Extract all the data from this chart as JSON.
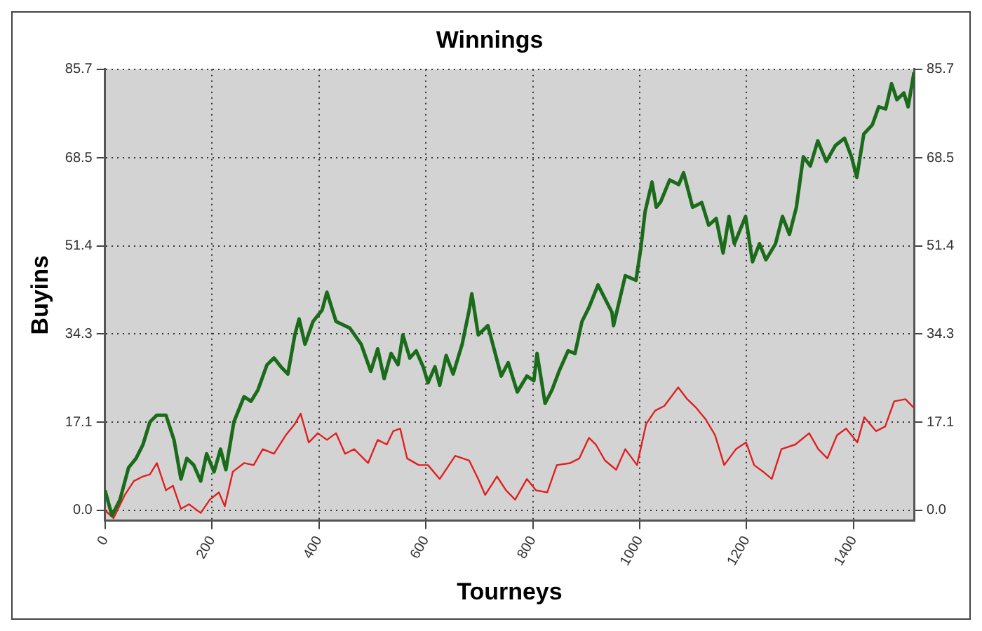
{
  "chart_data": {
    "type": "line",
    "title": "Winnings",
    "xlabel": "Tourneys",
    "ylabel": "Buyins",
    "xlim": [
      0,
      1513
    ],
    "xticks": [
      0,
      200,
      400,
      600,
      800,
      1000,
      1200,
      1400
    ],
    "ylim": [
      -2,
      85.7
    ],
    "yticks": [
      {
        "value": 0,
        "label": "0.0"
      },
      17.1,
      34.3,
      51.4,
      68.5,
      85.7
    ],
    "y2lim": [
      -2,
      85.7
    ],
    "y2ticks": [
      {
        "value": 0,
        "label": "0.0"
      },
      17.1,
      34.3,
      51.4,
      68.5,
      85.7
    ],
    "grid": true,
    "marker": "none",
    "line_style": "solid",
    "series": [
      {
        "color": "#1a6b1a",
        "x": [
          0,
          13,
          28,
          44,
          58,
          71,
          84,
          97,
          114,
          129,
          142,
          153,
          166,
          179,
          190,
          204,
          216,
          226,
          241,
          260,
          273,
          286,
          303,
          316,
          329,
          342,
          355,
          363,
          374,
          389,
          406,
          415,
          432,
          458,
          479,
          497,
          510,
          522,
          535,
          548,
          557,
          570,
          582,
          595,
          604,
          617,
          626,
          638,
          651,
          668,
          681,
          686,
          698,
          716,
          741,
          754,
          771,
          789,
          802,
          808,
          823,
          836,
          849,
          866,
          879,
          892,
          905,
          922,
          948,
          951,
          973,
          993,
          1002,
          1010,
          1023,
          1031,
          1039,
          1056,
          1073,
          1082,
          1099,
          1116,
          1129,
          1143,
          1156,
          1167,
          1177,
          1198,
          1211,
          1224,
          1236,
          1254,
          1267,
          1280,
          1293,
          1306,
          1319,
          1333,
          1349,
          1366,
          1383,
          1396,
          1406,
          1419,
          1435,
          1447,
          1460,
          1471,
          1481,
          1494,
          1502,
          1513
        ],
        "values": [
          3.9,
          -1,
          2.1,
          8.3,
          10.1,
          12.8,
          17.2,
          18.5,
          18.5,
          13.7,
          6.1,
          10.1,
          8.8,
          5.7,
          11,
          7.5,
          11.9,
          7.9,
          17.2,
          22.1,
          21.2,
          23.4,
          28.3,
          29.6,
          27.9,
          26.5,
          34.1,
          37.2,
          32.3,
          36.7,
          38.9,
          42.4,
          36.7,
          35.4,
          32.3,
          27,
          31.4,
          25.6,
          30.5,
          28.3,
          34.1,
          29.6,
          31,
          27.9,
          24.8,
          27.9,
          24.3,
          30.1,
          26.5,
          32.3,
          38.9,
          42.1,
          34.1,
          35.9,
          26.1,
          28.7,
          23,
          26.1,
          25.2,
          30.5,
          20.8,
          23.4,
          27,
          31,
          30.5,
          36.7,
          39.4,
          43.8,
          38.5,
          35.9,
          45.6,
          44.7,
          50.9,
          58,
          63.8,
          58.9,
          59.9,
          64.2,
          63.3,
          65.6,
          58.9,
          59.8,
          55.4,
          56.7,
          50,
          57.1,
          51.8,
          57.1,
          48.3,
          51.8,
          48.7,
          51.8,
          57.1,
          53.6,
          58.9,
          68.7,
          66.9,
          71.8,
          67.8,
          70.9,
          72.3,
          68.7,
          64.7,
          73.1,
          74.9,
          78.4,
          78,
          82.9,
          79.8,
          81.1,
          78.4,
          85.1
        ]
      },
      {
        "color": "#e02020",
        "x": [
          0,
          16,
          37,
          54,
          71,
          84,
          97,
          114,
          127,
          142,
          157,
          179,
          196,
          213,
          224,
          239,
          260,
          278,
          295,
          316,
          338,
          355,
          366,
          381,
          398,
          415,
          432,
          449,
          466,
          492,
          510,
          527,
          539,
          552,
          565,
          587,
          604,
          626,
          655,
          681,
          698,
          711,
          733,
          750,
          767,
          789,
          806,
          827,
          845,
          870,
          887,
          905,
          918,
          935,
          956,
          973,
          995,
          1012,
          1029,
          1046,
          1059,
          1072,
          1089,
          1106,
          1124,
          1141,
          1158,
          1180,
          1199,
          1214,
          1231,
          1247,
          1265,
          1291,
          1317,
          1334,
          1351,
          1369,
          1386,
          1407,
          1420,
          1442,
          1459,
          1476,
          1497,
          1513
        ],
        "values": [
          0,
          -1.5,
          3,
          5.7,
          6.6,
          7,
          9.2,
          3.9,
          4.8,
          0.3,
          1.2,
          -0.5,
          2.1,
          3.5,
          0.8,
          7.5,
          9.2,
          8.8,
          11.9,
          11,
          14.6,
          16.8,
          18.8,
          13.2,
          15,
          13.7,
          15,
          11,
          11.9,
          9.2,
          13.7,
          12.8,
          15.4,
          15.9,
          10.1,
          8.8,
          8.8,
          6.1,
          10.6,
          9.7,
          6.1,
          3,
          6.6,
          3.9,
          2.1,
          6.1,
          3.9,
          3.5,
          8.8,
          9.2,
          10.1,
          14.1,
          12.8,
          9.7,
          7.9,
          11.9,
          8.8,
          16.8,
          19.4,
          20.3,
          22.1,
          23.9,
          21.6,
          19.9,
          17.6,
          14.6,
          8.8,
          11.9,
          13.2,
          8.8,
          7.5,
          6.1,
          11.9,
          12.8,
          15,
          11.9,
          10.1,
          14.6,
          15.9,
          13.2,
          18.1,
          15.4,
          16.3,
          21.2,
          21.6,
          19.9
        ]
      }
    ]
  }
}
